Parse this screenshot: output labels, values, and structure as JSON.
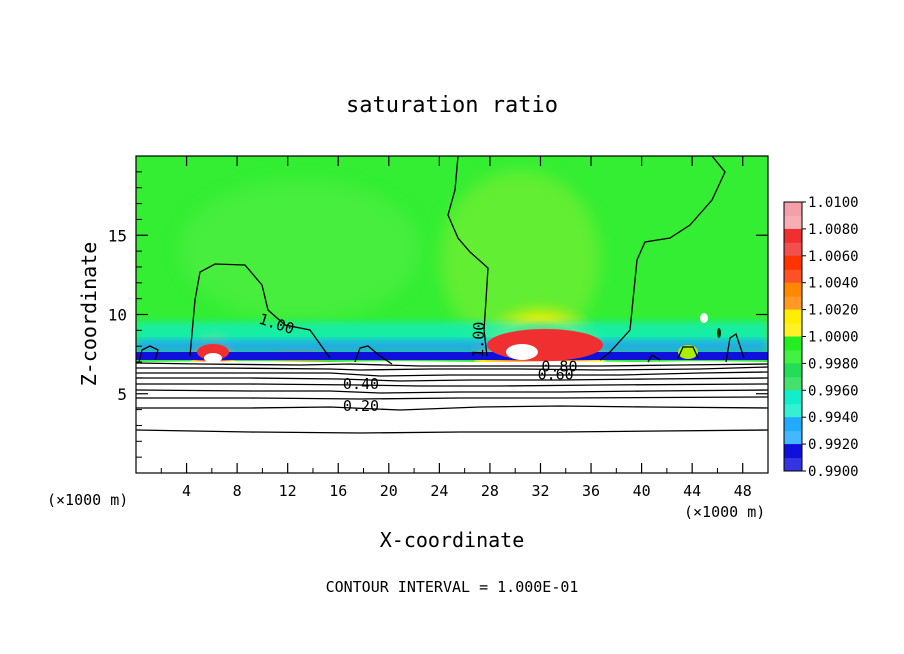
{
  "chart_data": {
    "type": "heatmap",
    "title": "saturation ratio",
    "xlabel": "X-coordinate",
    "ylabel": "Z-coordinate",
    "x_unit_left": "(×1000 m)",
    "x_unit_right": "(×1000 m)",
    "xlim": [
      0,
      50
    ],
    "ylim": [
      0,
      20
    ],
    "x_ticks": [
      4,
      8,
      12,
      16,
      20,
      24,
      28,
      32,
      36,
      40,
      44,
      48
    ],
    "y_ticks": [
      5,
      10,
      15
    ],
    "colorbar": {
      "min": 0.99,
      "max": 1.01,
      "labels": [
        "1.0100",
        "1.0080",
        "1.0060",
        "1.0040",
        "1.0020",
        "1.0000",
        "0.9980",
        "0.9960",
        "0.9940",
        "0.9920",
        "0.9900"
      ],
      "colors": [
        "#f4a0a8",
        "#f03030",
        "#ff3300",
        "#ff8800",
        "#ffee00",
        "#22ee22",
        "#22dd55",
        "#11eecc",
        "#22aaff",
        "#1010dd",
        "#6a0aa8"
      ]
    },
    "contour_labels": [
      {
        "text": "1.00",
        "x": 11,
        "z": 9.1,
        "rotate": 18
      },
      {
        "text": "1.00",
        "x": 27.5,
        "z": 8.4,
        "rotate": -88
      },
      {
        "text": "0.80",
        "x": 33.5,
        "z": 6.4,
        "rotate": 0
      },
      {
        "text": "0.60",
        "x": 33.2,
        "z": 5.9,
        "rotate": 0
      },
      {
        "text": "0.40",
        "x": 17.8,
        "z": 5.3,
        "rotate": 0
      },
      {
        "text": "0.20",
        "x": 17.8,
        "z": 3.9,
        "rotate": 0
      }
    ],
    "footer": "CONTOUR INTERVAL = 1.000E-01"
  }
}
